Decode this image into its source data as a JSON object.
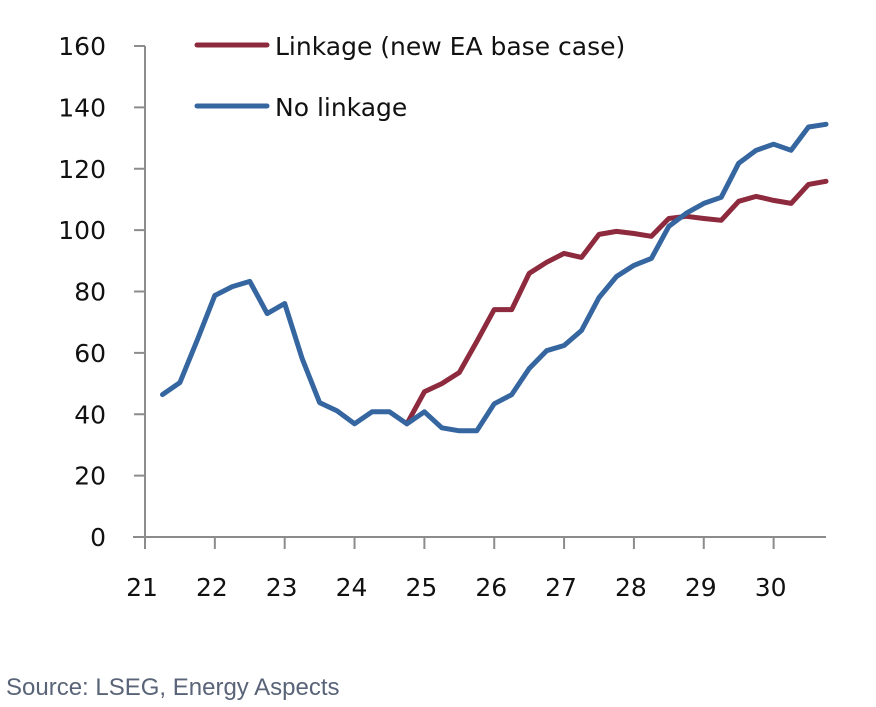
{
  "chart_data": {
    "type": "line",
    "title": "",
    "xlabel": "",
    "ylabel": "",
    "xlim": [
      21,
      30.75
    ],
    "ylim": [
      0,
      160
    ],
    "x_ticks": [
      21,
      22,
      23,
      24,
      25,
      26,
      27,
      28,
      29,
      30
    ],
    "x_tick_labels": [
      "21",
      "22",
      "23",
      "24",
      "25",
      "26",
      "27",
      "28",
      "29",
      "30"
    ],
    "y_ticks": [
      0,
      20,
      40,
      60,
      80,
      100,
      120,
      140,
      160
    ],
    "y_tick_labels": [
      "0",
      "20",
      "40",
      "60",
      "80",
      "100",
      "120",
      "140",
      "160"
    ],
    "grid": false,
    "legend_position": "top",
    "series": [
      {
        "name": "Linkage (new EA base case)",
        "color": "#8e2a3d",
        "x": [
          24.75,
          25.0,
          25.25,
          25.5,
          25.75,
          26.0,
          26.25,
          26.5,
          26.75,
          27.0,
          27.25,
          27.5,
          27.75,
          28.0,
          28.25,
          28.5,
          28.75,
          29.0,
          29.25,
          29.5,
          29.75,
          30.0,
          30.25,
          30.5,
          30.75
        ],
        "values": [
          36.9,
          47.3,
          50.0,
          53.6,
          63.7,
          74.1,
          74.1,
          85.9,
          89.5,
          92.4,
          91.1,
          98.6,
          99.6,
          98.9,
          98.0,
          103.8,
          104.5,
          103.8,
          103.2,
          109.4,
          111.0,
          109.7,
          108.7,
          114.9,
          115.9
        ]
      },
      {
        "name": "No linkage",
        "color": "#3566a0",
        "x": [
          21.25,
          21.5,
          21.75,
          22.0,
          22.25,
          22.5,
          22.75,
          23.0,
          23.25,
          23.5,
          23.75,
          24.0,
          24.25,
          24.5,
          24.75,
          25.0,
          25.25,
          25.5,
          25.75,
          26.0,
          26.25,
          26.5,
          26.75,
          27.0,
          27.25,
          27.5,
          27.75,
          28.0,
          28.25,
          28.5,
          28.75,
          29.0,
          29.25,
          29.5,
          29.75,
          30.0,
          30.25,
          30.5,
          30.75
        ],
        "values": [
          46.4,
          50.3,
          64.3,
          78.7,
          81.6,
          83.3,
          72.8,
          76.1,
          58.1,
          43.8,
          41.1,
          36.9,
          40.8,
          40.8,
          36.9,
          40.8,
          35.6,
          34.6,
          34.6,
          43.4,
          46.4,
          54.9,
          60.7,
          62.4,
          67.3,
          78.0,
          84.9,
          88.5,
          90.8,
          101.2,
          105.5,
          108.7,
          110.7,
          121.8,
          126.0,
          128.0,
          126.0,
          133.6,
          134.5
        ]
      }
    ]
  },
  "legend": {
    "items": [
      {
        "label": "Linkage (new EA base case)",
        "color": "#8e2a3d"
      },
      {
        "label": "No linkage",
        "color": "#3566a0"
      }
    ]
  },
  "source": "Source: LSEG, Energy Aspects"
}
